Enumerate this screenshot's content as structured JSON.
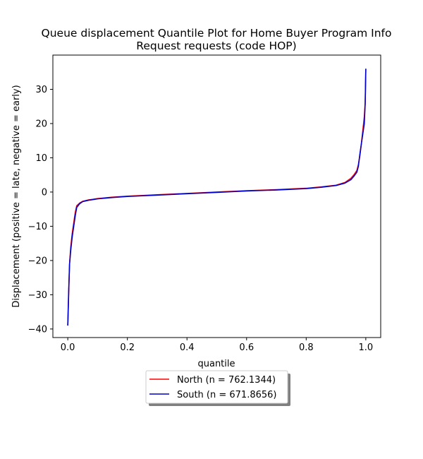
{
  "chart_data": {
    "type": "line",
    "title_line1": "Queue displacement Quantile Plot for Home Buyer Program Info",
    "title_line2": "Request  requests (code HOP)",
    "xlabel": "quantile",
    "ylabel": "Displacement (positive = late, negative = early)",
    "xlim": [
      -0.05,
      1.05
    ],
    "ylim": [
      -42.5,
      40
    ],
    "xticks": [
      0.0,
      0.2,
      0.4,
      0.6,
      0.8,
      1.0
    ],
    "xtick_labels": [
      "0.0",
      "0.2",
      "0.4",
      "0.6",
      "0.8",
      "1.0"
    ],
    "yticks": [
      -40,
      -30,
      -20,
      -10,
      0,
      10,
      20,
      30
    ],
    "ytick_labels": [
      "−40",
      "−30",
      "−20",
      "−10",
      "0",
      "10",
      "20",
      "30"
    ],
    "grid": false,
    "legend_placement": "below plot",
    "series": [
      {
        "name": "North (n = 762.1344)",
        "color": "#ff0000",
        "x": [
          0.0,
          0.003,
          0.006,
          0.01,
          0.015,
          0.02,
          0.025,
          0.03,
          0.04,
          0.05,
          0.07,
          0.1,
          0.15,
          0.2,
          0.3,
          0.4,
          0.5,
          0.6,
          0.7,
          0.8,
          0.85,
          0.9,
          0.93,
          0.95,
          0.96,
          0.97,
          0.975,
          0.98,
          0.985,
          0.99,
          0.995,
          0.998,
          1.0
        ],
        "y": [
          -39,
          -30,
          -21,
          -16,
          -12,
          -9,
          -6,
          -4,
          -3.2,
          -2.7,
          -2.3,
          -1.9,
          -1.5,
          -1.2,
          -0.8,
          -0.4,
          0,
          0.4,
          0.7,
          1.1,
          1.5,
          2.0,
          2.8,
          4.0,
          5.0,
          6.3,
          8,
          10.5,
          14,
          18,
          22,
          26,
          36
        ]
      },
      {
        "name": "South (n = 671.8656)",
        "color": "#0000cc",
        "x": [
          0.0,
          0.003,
          0.006,
          0.01,
          0.015,
          0.02,
          0.025,
          0.03,
          0.04,
          0.05,
          0.07,
          0.1,
          0.15,
          0.2,
          0.3,
          0.4,
          0.5,
          0.6,
          0.7,
          0.8,
          0.85,
          0.9,
          0.93,
          0.95,
          0.96,
          0.97,
          0.975,
          0.98,
          0.985,
          0.99,
          0.995,
          0.998,
          1.0
        ],
        "y": [
          -39,
          -29,
          -21,
          -17,
          -13,
          -10,
          -7,
          -4.5,
          -3.4,
          -2.8,
          -2.4,
          -2.0,
          -1.6,
          -1.3,
          -0.9,
          -0.5,
          -0.1,
          0.3,
          0.6,
          1.0,
          1.4,
          1.9,
          2.6,
          3.6,
          4.6,
          5.8,
          7.5,
          11,
          14,
          17,
          20,
          26,
          36
        ]
      }
    ]
  }
}
